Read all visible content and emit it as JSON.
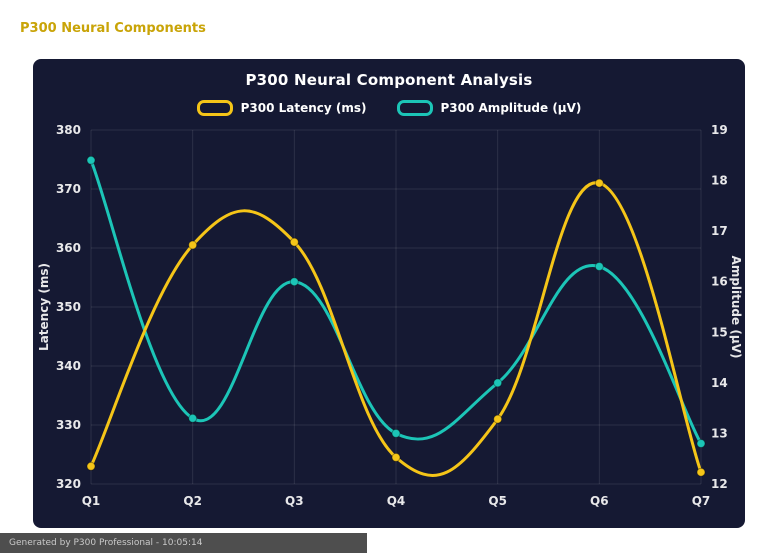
{
  "header": {
    "title": "P300 Neural Components"
  },
  "theme": {
    "page_bg": "#ffffff",
    "panel_bg": "#151933",
    "header_text": "#c9a408",
    "title_text": "#ffffff",
    "tick_text": "#e8e8ea",
    "grid": "rgba(255,255,255,0.10)",
    "footer_bg": "#4e4e4e",
    "footer_text": "#c9c9c9"
  },
  "chart_data": {
    "type": "line",
    "title": "P300 Neural Component Analysis",
    "categories": [
      "Q1",
      "Q2",
      "Q3",
      "Q4",
      "Q5",
      "Q6",
      "Q7"
    ],
    "series": [
      {
        "id": "latency",
        "name": "P300 Latency (ms)",
        "axis": "left",
        "color": "#f5c518",
        "values": [
          323,
          360.5,
          361,
          324.5,
          331,
          371,
          322
        ]
      },
      {
        "id": "amplitude",
        "name": "P300 Amplitude (μV)",
        "axis": "right",
        "color": "#1cc5b7",
        "values": [
          18.4,
          13.3,
          16.0,
          13.0,
          14.0,
          16.3,
          12.8
        ]
      }
    ],
    "left_axis": {
      "label": "Latency (ms)",
      "min": 320,
      "max": 380,
      "step": 10
    },
    "right_axis": {
      "label": "Amplitude (μV)",
      "min": 12,
      "max": 19,
      "step": 1
    },
    "grid": true,
    "legend_position": "top",
    "line_style": "smooth"
  },
  "footer": {
    "text": "Generated by P300 Professional - 10:05:14"
  }
}
